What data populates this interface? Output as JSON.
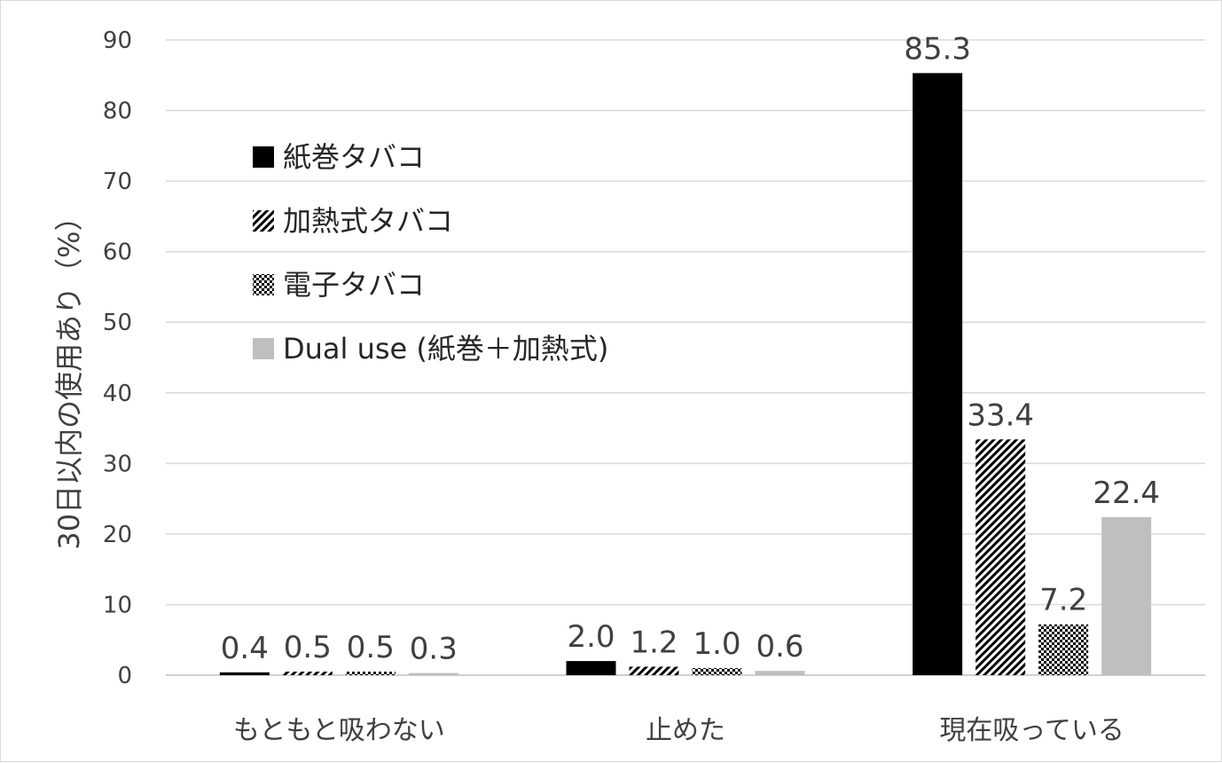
{
  "chart_data": {
    "type": "bar",
    "title": "",
    "xlabel": "",
    "ylabel": "30日以内の使用あり（%）",
    "ylim": [
      0,
      90
    ],
    "yticks": [
      0,
      10,
      20,
      30,
      40,
      50,
      60,
      70,
      80,
      90
    ],
    "grid": true,
    "legend_position": "top-left",
    "categories": [
      "もともと吸わない",
      "止めた",
      "現在吸っている"
    ],
    "series": [
      {
        "name": "紙巻タバコ",
        "pattern": "solid-black",
        "color": "#000000",
        "values": [
          0.4,
          2.0,
          85.3
        ],
        "labels": [
          "0.4",
          "2.0",
          "85.3"
        ]
      },
      {
        "name": "加熱式タバコ",
        "pattern": "diagonal-hatch",
        "color": "#000000",
        "values": [
          0.5,
          1.2,
          33.4
        ],
        "labels": [
          "0.5",
          "1.2",
          "33.4"
        ]
      },
      {
        "name": "電子タバコ",
        "pattern": "checker",
        "color": "#000000",
        "values": [
          0.5,
          1.0,
          7.2
        ],
        "labels": [
          "0.5",
          "1.0",
          "7.2"
        ]
      },
      {
        "name": "Dual use (紙巻＋加熱式)",
        "pattern": "solid-gray",
        "color": "#bfbfbf",
        "values": [
          0.3,
          0.6,
          22.4
        ],
        "labels": [
          "0.3",
          "0.6",
          "22.4"
        ]
      }
    ]
  }
}
